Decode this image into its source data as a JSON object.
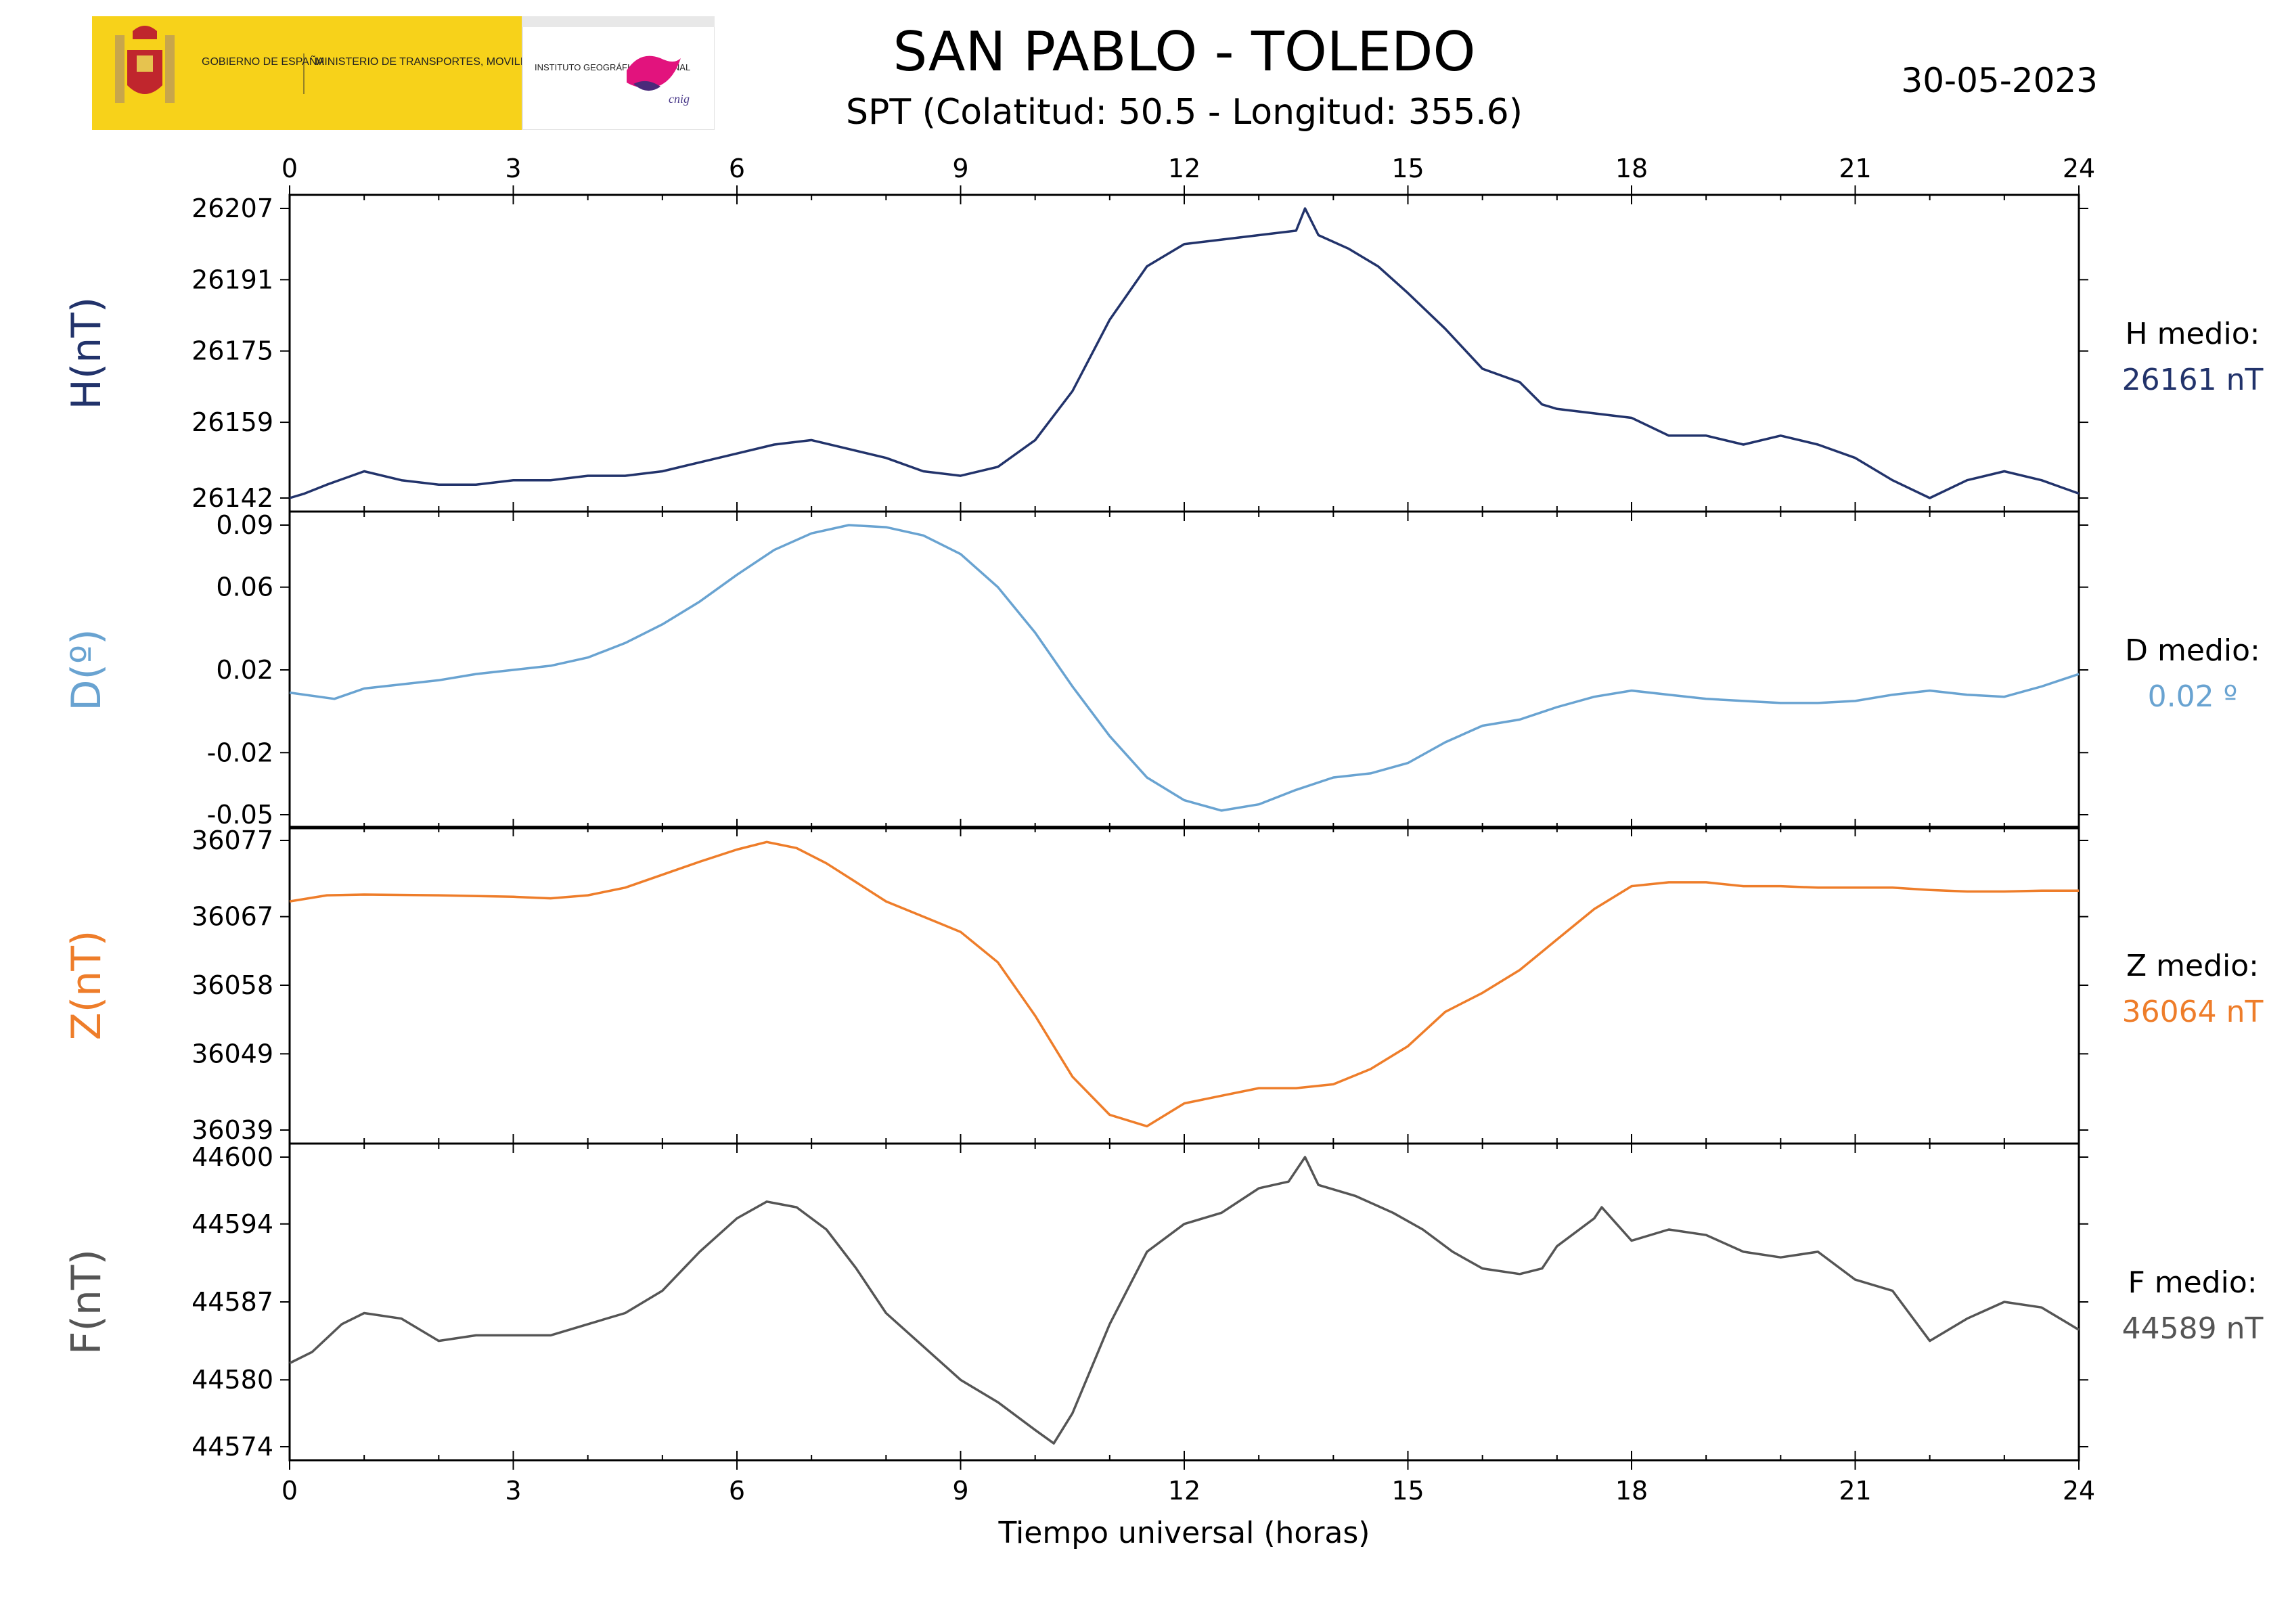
{
  "header": {
    "title": "SAN PABLO - TOLEDO",
    "subtitle": "SPT (Colatitud: 50.5 - Longitud: 355.6)",
    "date": "30-05-2023"
  },
  "logos": {
    "gobierno": "GOBIERNO DE ESPAÑA",
    "ministerio": "MINISTERIO DE TRANSPORTES, MOVILIDAD Y AGENDA URBANA",
    "instituto": "INSTITUTO GEOGRÁFICO NACIONAL",
    "cnig": "cnig"
  },
  "colors": {
    "H": "#22336b",
    "D": "#69a3d1",
    "Z": "#ee7d2a",
    "F": "#555555"
  },
  "chart_data": {
    "type": "line",
    "xlabel": "Tiempo universal (horas)",
    "xlim": [
      0,
      24
    ],
    "xticks": [
      0,
      3,
      6,
      9,
      12,
      15,
      18,
      21,
      24
    ],
    "panels": [
      {
        "id": "H",
        "ylabel": "H(nT)",
        "ylim": [
          26142,
          26207
        ],
        "yticks": [
          26142,
          26159,
          26175,
          26191,
          26207
        ],
        "ytick_labels": [
          "26142",
          "26159",
          "26175",
          "26191",
          "26207"
        ],
        "mean_label": "H medio:",
        "mean_value": "26161 nT",
        "points": [
          [
            0,
            26142
          ],
          [
            0.2,
            26143
          ],
          [
            0.5,
            26145
          ],
          [
            1.0,
            26148
          ],
          [
            1.5,
            26146
          ],
          [
            2.0,
            26145
          ],
          [
            2.5,
            26145
          ],
          [
            3.0,
            26146
          ],
          [
            3.5,
            26146
          ],
          [
            4.0,
            26147
          ],
          [
            4.5,
            26147
          ],
          [
            5.0,
            26148
          ],
          [
            5.5,
            26150
          ],
          [
            6.0,
            26152
          ],
          [
            6.5,
            26154
          ],
          [
            7.0,
            26155
          ],
          [
            7.5,
            26153
          ],
          [
            8.0,
            26151
          ],
          [
            8.5,
            26148
          ],
          [
            9.0,
            26147
          ],
          [
            9.5,
            26149
          ],
          [
            10.0,
            26155
          ],
          [
            10.5,
            26166
          ],
          [
            11.0,
            26182
          ],
          [
            11.5,
            26194
          ],
          [
            12.0,
            26199
          ],
          [
            12.5,
            26200
          ],
          [
            13.0,
            26201
          ],
          [
            13.5,
            26202
          ],
          [
            13.62,
            26207
          ],
          [
            13.8,
            26201
          ],
          [
            14.2,
            26198
          ],
          [
            14.6,
            26194
          ],
          [
            15.0,
            26188
          ],
          [
            15.5,
            26180
          ],
          [
            16.0,
            26171
          ],
          [
            16.5,
            26168
          ],
          [
            16.8,
            26163
          ],
          [
            17.0,
            26162
          ],
          [
            17.5,
            26161
          ],
          [
            18.0,
            26160
          ],
          [
            18.5,
            26156
          ],
          [
            19.0,
            26156
          ],
          [
            19.5,
            26154
          ],
          [
            20.0,
            26156
          ],
          [
            20.5,
            26154
          ],
          [
            21.0,
            26151
          ],
          [
            21.5,
            26146
          ],
          [
            22.0,
            26142
          ],
          [
            22.5,
            26146
          ],
          [
            23.0,
            26148
          ],
          [
            23.5,
            26146
          ],
          [
            24.0,
            26143
          ]
        ]
      },
      {
        "id": "D",
        "ylabel": "D(º)",
        "ylim": [
          -0.05,
          0.09
        ],
        "yticks": [
          -0.05,
          -0.02,
          0.02,
          0.06,
          0.09
        ],
        "ytick_labels": [
          "-0.05",
          "-0.02",
          "0.02",
          "0.06",
          "0.09"
        ],
        "mean_label": "D medio:",
        "mean_value": "0.02 º",
        "points": [
          [
            0,
            0.009
          ],
          [
            0.6,
            0.006
          ],
          [
            1.0,
            0.011
          ],
          [
            1.5,
            0.013
          ],
          [
            2.0,
            0.015
          ],
          [
            2.5,
            0.018
          ],
          [
            3.0,
            0.02
          ],
          [
            3.5,
            0.022
          ],
          [
            4.0,
            0.026
          ],
          [
            4.5,
            0.033
          ],
          [
            5.0,
            0.042
          ],
          [
            5.5,
            0.053
          ],
          [
            6.0,
            0.066
          ],
          [
            6.5,
            0.078
          ],
          [
            7.0,
            0.086
          ],
          [
            7.5,
            0.09
          ],
          [
            8.0,
            0.089
          ],
          [
            8.5,
            0.085
          ],
          [
            9.0,
            0.076
          ],
          [
            9.5,
            0.06
          ],
          [
            10.0,
            0.038
          ],
          [
            10.5,
            0.012
          ],
          [
            11.0,
            -0.012
          ],
          [
            11.5,
            -0.032
          ],
          [
            12.0,
            -0.043
          ],
          [
            12.5,
            -0.048
          ],
          [
            13.0,
            -0.045
          ],
          [
            13.5,
            -0.038
          ],
          [
            14.0,
            -0.032
          ],
          [
            14.5,
            -0.03
          ],
          [
            15.0,
            -0.025
          ],
          [
            15.5,
            -0.015
          ],
          [
            16.0,
            -0.007
          ],
          [
            16.5,
            -0.004
          ],
          [
            17.0,
            0.002
          ],
          [
            17.5,
            0.007
          ],
          [
            18.0,
            0.01
          ],
          [
            18.5,
            0.008
          ],
          [
            19.0,
            0.006
          ],
          [
            19.5,
            0.005
          ],
          [
            20.0,
            0.004
          ],
          [
            20.5,
            0.004
          ],
          [
            21.0,
            0.005
          ],
          [
            21.5,
            0.008
          ],
          [
            22.0,
            0.01
          ],
          [
            22.5,
            0.008
          ],
          [
            23.0,
            0.007
          ],
          [
            23.5,
            0.012
          ],
          [
            24.0,
            0.018
          ]
        ]
      },
      {
        "id": "Z",
        "ylabel": "Z(nT)",
        "ylim": [
          36039,
          36077
        ],
        "yticks": [
          36039,
          36049,
          36058,
          36067,
          36077
        ],
        "ytick_labels": [
          "36039",
          "36049",
          "36058",
          "36067",
          "36077"
        ],
        "mean_label": "Z medio:",
        "mean_value": "36064 nT",
        "points": [
          [
            0,
            36069
          ],
          [
            0.5,
            36069.8
          ],
          [
            1.0,
            36069.9
          ],
          [
            2.0,
            36069.8
          ],
          [
            3.0,
            36069.6
          ],
          [
            3.5,
            36069.4
          ],
          [
            4.0,
            36069.8
          ],
          [
            4.5,
            36070.8
          ],
          [
            5.0,
            36072.5
          ],
          [
            5.5,
            36074.2
          ],
          [
            6.0,
            36075.8
          ],
          [
            6.4,
            36076.8
          ],
          [
            6.8,
            36076
          ],
          [
            7.2,
            36074
          ],
          [
            7.6,
            36071.5
          ],
          [
            8.0,
            36069
          ],
          [
            8.5,
            36067
          ],
          [
            9.0,
            36065
          ],
          [
            9.5,
            36061
          ],
          [
            10.0,
            36054
          ],
          [
            10.5,
            36046
          ],
          [
            11.0,
            36041
          ],
          [
            11.5,
            36039.5
          ],
          [
            12.0,
            36042.5
          ],
          [
            12.5,
            36043.5
          ],
          [
            13.0,
            36044.5
          ],
          [
            13.5,
            36044.5
          ],
          [
            14.0,
            36045
          ],
          [
            14.5,
            36047
          ],
          [
            15.0,
            36050
          ],
          [
            15.5,
            36054.5
          ],
          [
            16.0,
            36057
          ],
          [
            16.5,
            36060
          ],
          [
            17.0,
            36064
          ],
          [
            17.5,
            36068
          ],
          [
            18.0,
            36071
          ],
          [
            18.5,
            36071.5
          ],
          [
            19.0,
            36071.5
          ],
          [
            19.5,
            36071
          ],
          [
            20.0,
            36071
          ],
          [
            20.5,
            36070.8
          ],
          [
            21.0,
            36070.8
          ],
          [
            21.5,
            36070.8
          ],
          [
            22.0,
            36070.5
          ],
          [
            22.5,
            36070.3
          ],
          [
            23.0,
            36070.3
          ],
          [
            23.5,
            36070.4
          ],
          [
            24.0,
            36070.4
          ]
        ]
      },
      {
        "id": "F",
        "ylabel": "F(nT)",
        "ylim": [
          44574,
          44600
        ],
        "yticks": [
          44574,
          44580,
          44587,
          44594,
          44600
        ],
        "ytick_labels": [
          "44574",
          "44580",
          "44587",
          "44594",
          "44600"
        ],
        "mean_label": "F medio:",
        "mean_value": "44589 nT",
        "points": [
          [
            0,
            44581.5
          ],
          [
            0.3,
            44582.5
          ],
          [
            0.7,
            44585
          ],
          [
            1.0,
            44586
          ],
          [
            1.5,
            44585.5
          ],
          [
            2.0,
            44583.5
          ],
          [
            2.5,
            44584
          ],
          [
            3.0,
            44584
          ],
          [
            3.5,
            44584
          ],
          [
            4.0,
            44585
          ],
          [
            4.5,
            44586
          ],
          [
            5.0,
            44588
          ],
          [
            5.5,
            44591.5
          ],
          [
            6.0,
            44594.5
          ],
          [
            6.4,
            44596
          ],
          [
            6.8,
            44595.5
          ],
          [
            7.2,
            44593.5
          ],
          [
            7.6,
            44590
          ],
          [
            8.0,
            44586
          ],
          [
            8.5,
            44583
          ],
          [
            9.0,
            44580
          ],
          [
            9.5,
            44578
          ],
          [
            10.0,
            44575.5
          ],
          [
            10.25,
            44574.3
          ],
          [
            10.5,
            44577
          ],
          [
            11.0,
            44585
          ],
          [
            11.5,
            44591.5
          ],
          [
            12.0,
            44594
          ],
          [
            12.5,
            44595
          ],
          [
            13.0,
            44597.2
          ],
          [
            13.4,
            44597.8
          ],
          [
            13.62,
            44600
          ],
          [
            13.8,
            44597.5
          ],
          [
            14.3,
            44596.5
          ],
          [
            14.8,
            44595
          ],
          [
            15.2,
            44593.5
          ],
          [
            15.6,
            44591.5
          ],
          [
            16.0,
            44590
          ],
          [
            16.5,
            44589.5
          ],
          [
            16.8,
            44590
          ],
          [
            17.0,
            44592
          ],
          [
            17.5,
            44594.5
          ],
          [
            17.6,
            44595.5
          ],
          [
            18.0,
            44592.5
          ],
          [
            18.5,
            44593.5
          ],
          [
            19.0,
            44593
          ],
          [
            19.5,
            44591.5
          ],
          [
            20.0,
            44591
          ],
          [
            20.5,
            44591.5
          ],
          [
            21.0,
            44589
          ],
          [
            21.5,
            44588
          ],
          [
            22.0,
            44583.5
          ],
          [
            22.5,
            44585.5
          ],
          [
            23.0,
            44587
          ],
          [
            23.5,
            44586.5
          ],
          [
            24.0,
            44584.5
          ]
        ]
      }
    ]
  }
}
